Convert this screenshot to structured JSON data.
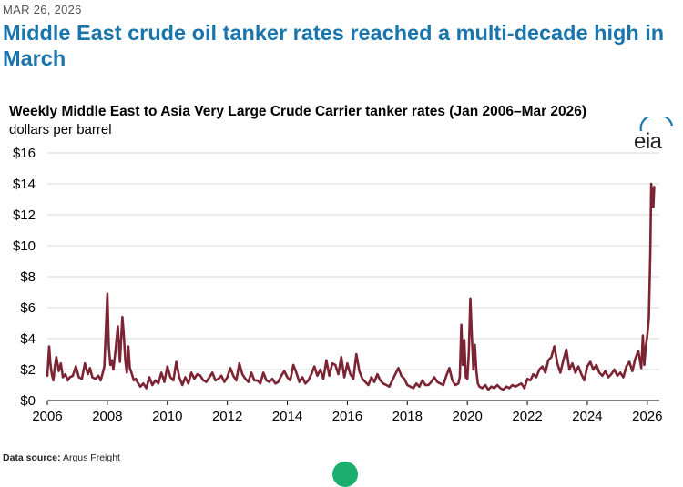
{
  "header": {
    "date": "MAR 26, 2026",
    "headline": "Middle East crude oil tanker rates reached a multi-decade high in March"
  },
  "footer": {
    "source_label": "Data source:",
    "source_value": "Argus Freight"
  },
  "logo": {
    "text": "eia"
  },
  "colors": {
    "headline": "#1a75ac",
    "series": "#7b2433",
    "grid": "#d9d9d9"
  },
  "chart_data": {
    "type": "line",
    "title": "Weekly Middle East to Asia Very Large Crude Carrier tanker rates (Jan 2006–Mar 2026)",
    "ylabel": "dollars per barrel",
    "xlabel": "",
    "xlim": [
      2006,
      2026.4
    ],
    "ylim": [
      0,
      16
    ],
    "y_ticks": [
      0,
      2,
      4,
      6,
      8,
      10,
      12,
      14,
      16
    ],
    "y_tick_labels": [
      "$0",
      "$2",
      "$4",
      "$6",
      "$8",
      "$10",
      "$12",
      "$14",
      "$16"
    ],
    "x_ticks": [
      2006,
      2008,
      2010,
      2012,
      2014,
      2016,
      2018,
      2020,
      2022,
      2024,
      2026
    ],
    "x_tick_labels": [
      "2006",
      "2008",
      "2010",
      "2012",
      "2014",
      "2016",
      "2018",
      "2020",
      "2022",
      "2024",
      "2026"
    ],
    "grid": true,
    "series": [
      {
        "name": "Middle East to Asia VLCC rate",
        "x": [
          2006.0,
          2006.06,
          2006.1,
          2006.15,
          2006.2,
          2006.25,
          2006.3,
          2006.38,
          2006.45,
          2006.52,
          2006.6,
          2006.68,
          2006.75,
          2006.85,
          2006.95,
          2007.05,
          2007.15,
          2007.25,
          2007.35,
          2007.42,
          2007.5,
          2007.6,
          2007.7,
          2007.78,
          2007.85,
          2007.9,
          2007.95,
          2008.0,
          2008.05,
          2008.1,
          2008.15,
          2008.2,
          2008.27,
          2008.35,
          2008.42,
          2008.5,
          2008.55,
          2008.6,
          2008.65,
          2008.7,
          2008.75,
          2008.82,
          2008.88,
          2008.95,
          2009.0,
          2009.1,
          2009.2,
          2009.3,
          2009.4,
          2009.5,
          2009.6,
          2009.7,
          2009.8,
          2009.9,
          2010.0,
          2010.1,
          2010.2,
          2010.3,
          2010.4,
          2010.5,
          2010.6,
          2010.7,
          2010.8,
          2010.9,
          2011.0,
          2011.1,
          2011.2,
          2011.3,
          2011.4,
          2011.5,
          2011.6,
          2011.7,
          2011.8,
          2011.9,
          2012.0,
          2012.1,
          2012.2,
          2012.3,
          2012.4,
          2012.5,
          2012.6,
          2012.7,
          2012.8,
          2012.9,
          2013.0,
          2013.1,
          2013.2,
          2013.3,
          2013.4,
          2013.5,
          2013.6,
          2013.7,
          2013.8,
          2013.9,
          2014.0,
          2014.1,
          2014.2,
          2014.3,
          2014.4,
          2014.5,
          2014.6,
          2014.7,
          2014.8,
          2014.9,
          2015.0,
          2015.1,
          2015.2,
          2015.3,
          2015.4,
          2015.5,
          2015.6,
          2015.7,
          2015.8,
          2015.9,
          2016.0,
          2016.1,
          2016.2,
          2016.3,
          2016.4,
          2016.5,
          2016.6,
          2016.7,
          2016.8,
          2016.9,
          2017.0,
          2017.1,
          2017.2,
          2017.3,
          2017.4,
          2017.5,
          2017.6,
          2017.7,
          2017.8,
          2017.9,
          2018.0,
          2018.1,
          2018.2,
          2018.3,
          2018.4,
          2018.5,
          2018.6,
          2018.7,
          2018.8,
          2018.9,
          2019.0,
          2019.1,
          2019.2,
          2019.3,
          2019.4,
          2019.5,
          2019.6,
          2019.7,
          2019.75,
          2019.8,
          2019.85,
          2019.9,
          2019.95,
          2020.0,
          2020.05,
          2020.1,
          2020.15,
          2020.2,
          2020.25,
          2020.3,
          2020.35,
          2020.4,
          2020.5,
          2020.6,
          2020.7,
          2020.8,
          2020.9,
          2021.0,
          2021.1,
          2021.2,
          2021.3,
          2021.4,
          2021.5,
          2021.6,
          2021.7,
          2021.8,
          2021.9,
          2022.0,
          2022.1,
          2022.2,
          2022.3,
          2022.4,
          2022.5,
          2022.6,
          2022.7,
          2022.8,
          2022.9,
          2023.0,
          2023.1,
          2023.2,
          2023.3,
          2023.4,
          2023.5,
          2023.6,
          2023.7,
          2023.8,
          2023.9,
          2024.0,
          2024.1,
          2024.2,
          2024.3,
          2024.4,
          2024.5,
          2024.6,
          2024.7,
          2024.8,
          2024.9,
          2025.0,
          2025.1,
          2025.2,
          2025.3,
          2025.4,
          2025.5,
          2025.6,
          2025.7,
          2025.8,
          2025.85,
          2025.9,
          2025.95,
          2026.0,
          2026.05,
          2026.1,
          2026.13,
          2026.16,
          2026.2,
          2026.23
        ],
        "values": [
          1.6,
          3.5,
          2.4,
          1.7,
          1.3,
          2.2,
          2.8,
          1.9,
          2.4,
          1.5,
          1.7,
          1.3,
          1.5,
          1.6,
          2.2,
          1.5,
          1.4,
          2.4,
          1.7,
          2.1,
          1.5,
          1.4,
          1.6,
          1.3,
          1.8,
          2.2,
          4.5,
          6.9,
          3.5,
          2.3,
          2.6,
          2.0,
          3.2,
          4.8,
          2.5,
          5.4,
          4.2,
          2.6,
          1.8,
          3.5,
          2.1,
          1.7,
          1.3,
          1.4,
          1.2,
          0.9,
          1.1,
          0.8,
          1.5,
          1.0,
          1.3,
          1.1,
          1.8,
          1.2,
          2.2,
          1.5,
          1.3,
          2.5,
          1.5,
          1.0,
          1.5,
          1.1,
          1.8,
          1.4,
          1.7,
          1.6,
          1.3,
          1.2,
          1.5,
          1.8,
          1.3,
          1.4,
          1.6,
          1.2,
          1.5,
          2.1,
          1.6,
          1.3,
          2.4,
          1.7,
          1.4,
          1.2,
          1.8,
          1.3,
          1.3,
          1.1,
          1.8,
          1.3,
          1.2,
          1.4,
          1.1,
          1.2,
          1.6,
          1.9,
          1.5,
          1.3,
          2.3,
          1.8,
          1.2,
          1.5,
          1.1,
          1.3,
          1.7,
          2.2,
          1.6,
          2.0,
          1.4,
          2.6,
          1.6,
          2.4,
          2.3,
          1.7,
          2.8,
          1.5,
          2.4,
          1.7,
          1.4,
          3.0,
          1.9,
          1.4,
          1.2,
          1.0,
          1.5,
          1.2,
          1.7,
          1.3,
          1.1,
          1.0,
          0.9,
          1.3,
          1.7,
          2.1,
          1.6,
          1.4,
          1.0,
          0.9,
          0.8,
          1.1,
          0.9,
          1.3,
          1.0,
          1.0,
          1.2,
          1.5,
          1.2,
          1.1,
          1.0,
          1.6,
          2.1,
          1.3,
          1.0,
          1.1,
          1.5,
          4.9,
          2.3,
          3.9,
          1.5,
          1.4,
          3.1,
          6.6,
          4.2,
          2.0,
          3.6,
          1.9,
          1.1,
          0.9,
          0.8,
          1.0,
          0.7,
          0.9,
          0.8,
          1.0,
          0.8,
          0.7,
          0.9,
          0.8,
          1.0,
          0.9,
          1.0,
          1.1,
          0.8,
          1.4,
          1.3,
          1.7,
          1.5,
          2.0,
          2.2,
          1.8,
          2.6,
          2.8,
          3.5,
          2.4,
          1.8,
          2.6,
          3.3,
          2.0,
          2.4,
          1.8,
          2.2,
          1.7,
          1.3,
          2.2,
          2.5,
          2.0,
          2.3,
          1.8,
          1.6,
          1.9,
          1.5,
          1.7,
          2.0,
          1.6,
          1.8,
          1.5,
          2.2,
          2.5,
          1.9,
          2.7,
          3.2,
          2.1,
          4.2,
          2.3,
          3.5,
          4.2,
          5.3,
          9.5,
          14.0,
          13.5,
          12.5,
          13.8
        ]
      }
    ]
  }
}
